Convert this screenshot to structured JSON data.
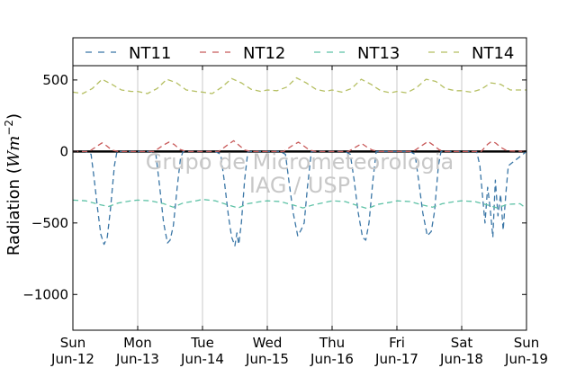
{
  "chart_data": {
    "type": "line",
    "title": "",
    "xlabel": "",
    "ylabel": "Radiation (Wm⁻²)",
    "ylabel_parts": {
      "main": "Radiation (",
      "unit": "Wm",
      "exp": "−2",
      "close": ")"
    },
    "ylim": [
      -1250,
      600
    ],
    "xlim": [
      0,
      7
    ],
    "grid": "vertical",
    "legend": "top",
    "yticks": [
      {
        "value": 500,
        "label": "500"
      },
      {
        "value": 0,
        "label": "0"
      },
      {
        "value": -500,
        "label": "−500"
      },
      {
        "value": -1000,
        "label": "−1000"
      }
    ],
    "xticks": [
      {
        "day": 0,
        "line1": "Sun",
        "line2": "Jun-12"
      },
      {
        "day": 1,
        "line1": "Mon",
        "line2": "Jun-13"
      },
      {
        "day": 2,
        "line1": "Tue",
        "line2": "Jun-14"
      },
      {
        "day": 3,
        "line1": "Wed",
        "line2": "Jun-15"
      },
      {
        "day": 4,
        "line1": "Thu",
        "line2": "Jun-16"
      },
      {
        "day": 5,
        "line1": "Fri",
        "line2": "Jun-17"
      },
      {
        "day": 6,
        "line1": "Sat",
        "line2": "Jun-18"
      },
      {
        "day": 7,
        "line1": "Sun",
        "line2": "Jun-19"
      }
    ],
    "series": [
      {
        "name": "NT11",
        "color": "#3a76a6",
        "x": [
          0,
          0.2,
          0.28,
          0.33,
          0.38,
          0.43,
          0.48,
          0.53,
          0.58,
          0.64,
          0.68,
          1,
          1.2,
          1.28,
          1.34,
          1.4,
          1.46,
          1.5,
          1.55,
          1.61,
          1.66,
          1.7,
          2,
          2.2,
          2.28,
          2.34,
          2.4,
          2.45,
          2.5,
          2.53,
          2.56,
          2.6,
          2.65,
          2.7,
          3,
          3.2,
          3.28,
          3.34,
          3.4,
          3.47,
          3.52,
          3.57,
          3.62,
          3.68,
          4,
          4.2,
          4.28,
          4.34,
          4.4,
          4.47,
          4.52,
          4.57,
          4.63,
          4.68,
          5,
          5.2,
          5.28,
          5.34,
          5.4,
          5.47,
          5.53,
          5.58,
          5.64,
          5.68,
          6,
          6.23,
          6.28,
          6.32,
          6.36,
          6.4,
          6.44,
          6.48,
          6.52,
          6.56,
          6.6,
          6.64,
          6.68,
          6.72,
          7
        ],
        "y": [
          0,
          0,
          -20,
          -200,
          -400,
          -580,
          -650,
          -600,
          -400,
          -100,
          0,
          0,
          0,
          -20,
          -250,
          -500,
          -640,
          -620,
          -520,
          -250,
          -50,
          0,
          0,
          0,
          -20,
          -220,
          -450,
          -600,
          -660,
          -570,
          -650,
          -500,
          -200,
          0,
          0,
          0,
          -20,
          -230,
          -430,
          -590,
          -550,
          -500,
          -250,
          0,
          0,
          0,
          -20,
          -200,
          -420,
          -600,
          -620,
          -500,
          -200,
          0,
          0,
          0,
          -20,
          -220,
          -430,
          -590,
          -560,
          -420,
          -100,
          0,
          0,
          0,
          -100,
          -300,
          -500,
          -250,
          -400,
          -600,
          -200,
          -450,
          -300,
          -550,
          -300,
          -100,
          0
        ]
      },
      {
        "name": "NT12",
        "color": "#c85a5a",
        "x": [
          0,
          0.25,
          0.38,
          0.45,
          0.52,
          0.6,
          0.7,
          1,
          1.25,
          1.4,
          1.48,
          1.56,
          1.65,
          1.75,
          2,
          2.25,
          2.4,
          2.48,
          2.56,
          2.65,
          2.75,
          3,
          3.25,
          3.4,
          3.48,
          3.56,
          3.65,
          3.75,
          4,
          4.25,
          4.38,
          4.46,
          4.54,
          4.62,
          4.72,
          5,
          5.25,
          5.38,
          5.48,
          5.56,
          5.66,
          5.75,
          6,
          6.3,
          6.4,
          6.46,
          6.52,
          6.6,
          6.7,
          7
        ],
        "y": [
          0,
          0,
          40,
          60,
          40,
          10,
          0,
          0,
          0,
          45,
          65,
          50,
          15,
          0,
          0,
          0,
          50,
          75,
          45,
          10,
          0,
          0,
          0,
          45,
          65,
          40,
          10,
          0,
          0,
          0,
          35,
          55,
          30,
          10,
          0,
          0,
          0,
          40,
          70,
          45,
          10,
          0,
          0,
          0,
          50,
          70,
          60,
          30,
          5,
          0
        ]
      },
      {
        "name": "NT13",
        "color": "#5ec2a6",
        "x": [
          0,
          0.2,
          0.4,
          0.55,
          0.7,
          0.9,
          1,
          1.2,
          1.4,
          1.55,
          1.7,
          1.9,
          2,
          2.2,
          2.4,
          2.55,
          2.7,
          2.9,
          3,
          3.2,
          3.4,
          3.55,
          3.7,
          3.9,
          4,
          4.2,
          4.4,
          4.55,
          4.7,
          4.9,
          5,
          5.2,
          5.4,
          5.55,
          5.7,
          5.9,
          6,
          6.2,
          6.4,
          6.55,
          6.7,
          6.9,
          7
        ],
        "y": [
          -340,
          -345,
          -370,
          -385,
          -360,
          -345,
          -340,
          -345,
          -365,
          -390,
          -360,
          -345,
          -335,
          -345,
          -375,
          -395,
          -365,
          -350,
          -345,
          -350,
          -375,
          -395,
          -375,
          -355,
          -345,
          -350,
          -380,
          -400,
          -370,
          -355,
          -345,
          -350,
          -375,
          -390,
          -365,
          -350,
          -345,
          -350,
          -375,
          -395,
          -370,
          -365,
          -400
        ]
      },
      {
        "name": "NT14",
        "color": "#b5bf62",
        "x": [
          0,
          0.15,
          0.3,
          0.45,
          0.6,
          0.75,
          0.9,
          1,
          1.15,
          1.3,
          1.45,
          1.6,
          1.75,
          1.9,
          2,
          2.15,
          2.3,
          2.45,
          2.6,
          2.75,
          2.9,
          3,
          3.15,
          3.3,
          3.45,
          3.6,
          3.75,
          3.9,
          4,
          4.15,
          4.3,
          4.45,
          4.6,
          4.75,
          4.9,
          5,
          5.15,
          5.3,
          5.45,
          5.6,
          5.75,
          5.9,
          6,
          6.15,
          6.3,
          6.45,
          6.6,
          6.75,
          6.9,
          7
        ],
        "y": [
          415,
          405,
          440,
          505,
          470,
          430,
          420,
          420,
          405,
          440,
          505,
          480,
          430,
          420,
          415,
          405,
          450,
          510,
          480,
          435,
          420,
          430,
          425,
          450,
          515,
          480,
          435,
          420,
          430,
          415,
          440,
          505,
          470,
          425,
          410,
          420,
          410,
          445,
          505,
          490,
          440,
          425,
          425,
          415,
          435,
          480,
          470,
          430,
          430,
          430
        ]
      }
    ]
  },
  "watermark": {
    "line1": "Grupo de Micrometeorologia",
    "line2": "IAG / USP"
  }
}
